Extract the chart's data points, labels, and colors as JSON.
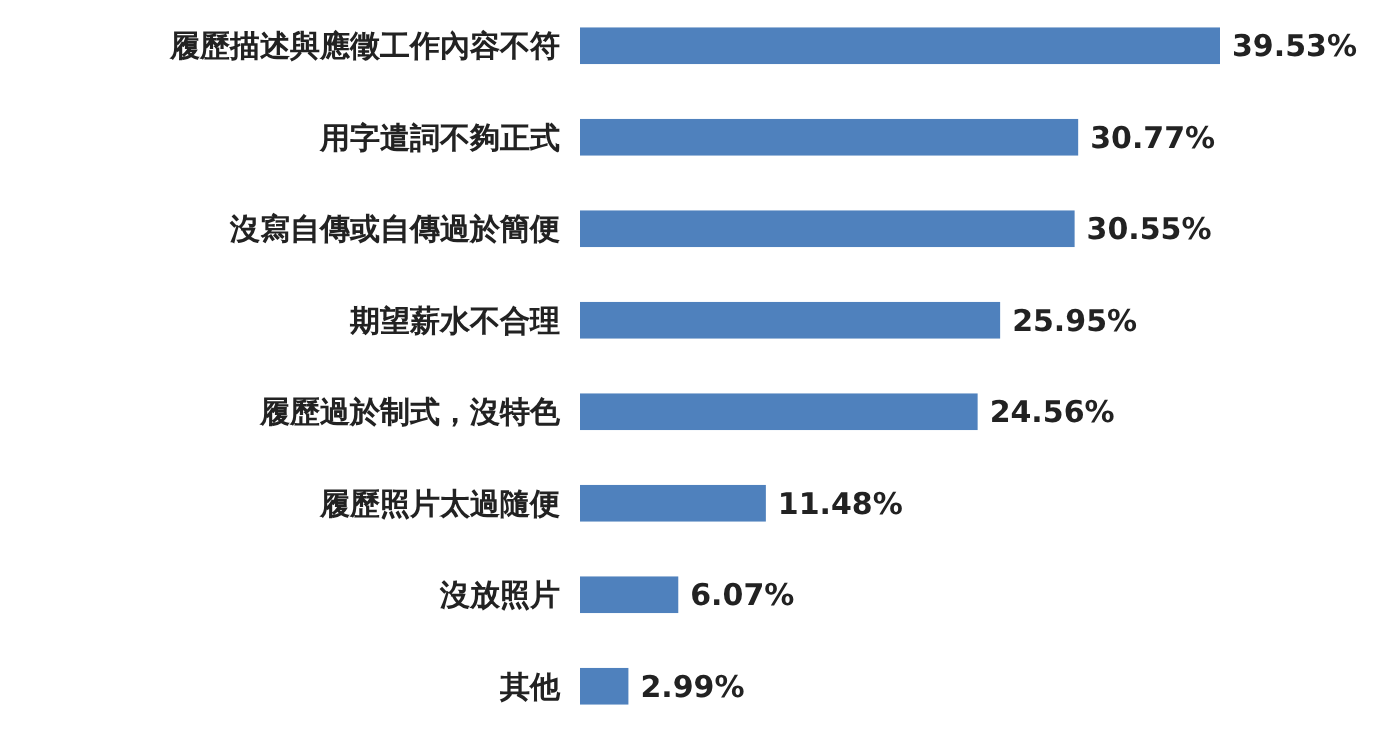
{
  "chart_data": {
    "type": "bar",
    "orientation": "horizontal",
    "categories": [
      "履歷描述與應徵工作內容不符",
      "用字遣詞不夠正式",
      "沒寫自傳或自傳過於簡便",
      "期望薪水不合理",
      "履歷過於制式，沒特色",
      "履歷照片太過隨便",
      "沒放照片",
      "其他"
    ],
    "values": [
      39.53,
      30.77,
      30.55,
      25.95,
      24.56,
      11.48,
      6.07,
      2.99
    ],
    "value_labels": [
      "39.53%",
      "30.77%",
      "30.55%",
      "25.95%",
      "24.56%",
      "11.48%",
      "6.07%",
      "2.99%"
    ],
    "color": "#4f81bd"
  }
}
